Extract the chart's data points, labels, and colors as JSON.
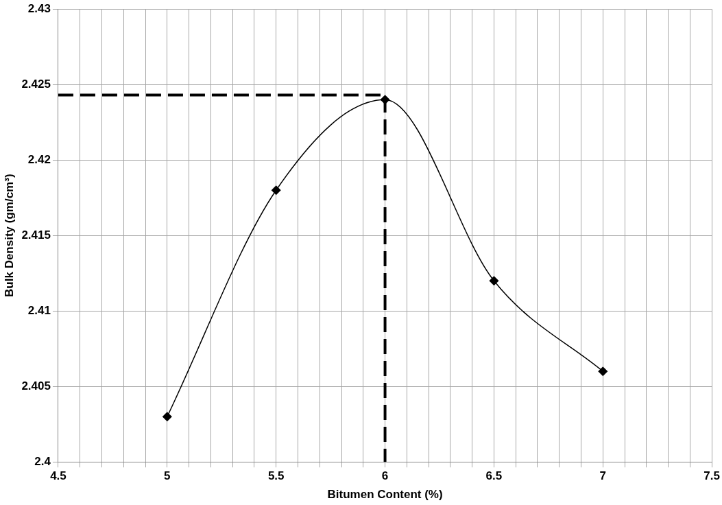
{
  "chart_data": {
    "type": "line",
    "xlabel": "Bitumen Content (%)",
    "ylabel": "Bulk Density (gm/cm³)",
    "series": [
      {
        "color": "#000000",
        "x": [
          5,
          5.5,
          6,
          6.5,
          7
        ],
        "values": [
          2.403,
          2.418,
          2.424,
          2.412,
          2.406
        ],
        "marker": "diamond",
        "line_style": "solid"
      },
      {
        "color": "#000000",
        "x": [
          4.5,
          6,
          6
        ],
        "values": [
          2.4243,
          2.4243,
          2.4
        ],
        "marker": "none",
        "line_style": "dashed"
      }
    ],
    "xlim": [
      4.5,
      7.5
    ],
    "xticks": [
      4.5,
      {
        "value": 4.6,
        "label": null
      },
      {
        "value": 4.7,
        "label": null
      },
      {
        "value": 4.8,
        "label": null
      },
      {
        "value": 4.9,
        "label": null
      },
      5,
      {
        "value": 5.1,
        "label": null
      },
      {
        "value": 5.2,
        "label": null
      },
      {
        "value": 5.3,
        "label": null
      },
      {
        "value": 5.4,
        "label": null
      },
      5.5,
      {
        "value": 5.6,
        "label": null
      },
      {
        "value": 5.7,
        "label": null
      },
      {
        "value": 5.8,
        "label": null
      },
      {
        "value": 5.9,
        "label": null
      },
      6,
      {
        "value": 6.1,
        "label": null
      },
      {
        "value": 6.2,
        "label": null
      },
      {
        "value": 6.3,
        "label": null
      },
      {
        "value": 6.4,
        "label": null
      },
      6.5,
      {
        "value": 6.6,
        "label": null
      },
      {
        "value": 6.7,
        "label": null
      },
      {
        "value": 6.8,
        "label": null
      },
      {
        "value": 6.9,
        "label": null
      },
      7,
      {
        "value": 7.1,
        "label": null
      },
      {
        "value": 7.2,
        "label": null
      },
      {
        "value": 7.3,
        "label": null
      },
      {
        "value": 7.4,
        "label": null
      },
      7.5
    ],
    "ylim": [
      2.4,
      2.43
    ],
    "yticks": [
      2.4,
      2.405,
      2.41,
      2.415,
      2.42,
      2.425,
      2.43
    ],
    "grid": true,
    "legend": false
  }
}
